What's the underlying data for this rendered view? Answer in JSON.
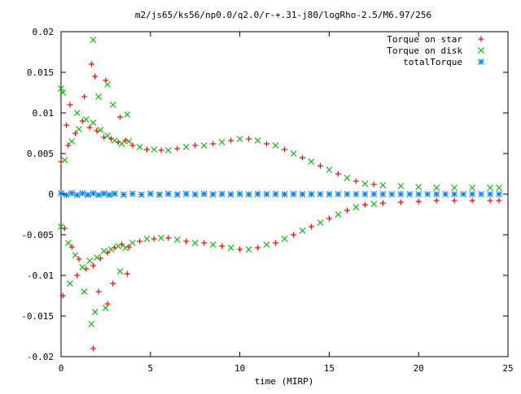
{
  "chart_data": {
    "type": "scatter",
    "title": "m2/js65/ks56/np0.0/q2.0/r-+.31-j80/logRho-2.5/M6.97/256",
    "xlabel": "time (MIRP)",
    "ylabel": "",
    "xlim": [
      0,
      25
    ],
    "ylim": [
      -0.02,
      0.02
    ],
    "x_ticks": [
      "0",
      "5",
      "10",
      "15",
      "20",
      "25"
    ],
    "y_ticks": [
      "-0.02",
      "-0.015",
      "-0.01",
      "-0.005",
      "0",
      "0.005",
      "0.01",
      "0.015",
      "0.02"
    ],
    "grid": false,
    "legend_position": "top-right",
    "series": [
      {
        "name": "Torque on star",
        "marker": "+",
        "color": "#ff0000",
        "x": [
          0.0,
          0.2,
          0.4,
          0.6,
          0.8,
          1.0,
          1.2,
          1.4,
          1.6,
          1.8,
          2.0,
          2.2,
          2.4,
          2.6,
          2.8,
          3.0,
          3.2,
          3.4,
          3.6,
          3.8,
          4.0,
          4.4,
          4.8,
          5.2,
          5.6,
          6.0,
          6.5,
          7.0,
          7.5,
          8.0,
          8.5,
          9.0,
          9.5,
          10.0,
          10.5,
          11.0,
          11.5,
          12.0,
          12.5,
          13.0,
          13.5,
          14.0,
          14.5,
          15.0,
          15.5,
          16.0,
          16.5,
          17.0,
          17.5,
          18.0,
          19.0,
          20.0,
          21.0,
          22.0,
          23.0,
          24.0,
          24.5,
          0.1,
          0.5,
          0.9,
          1.3,
          1.7,
          2.1,
          2.5,
          2.9,
          3.3,
          3.7,
          1.8,
          1.9,
          0.3,
          2.6
        ],
        "y": [
          0.004,
          -0.0042,
          0.006,
          -0.0065,
          0.0075,
          -0.008,
          0.009,
          -0.0092,
          0.0082,
          -0.0088,
          0.0078,
          -0.0079,
          0.007,
          -0.0072,
          0.0068,
          -0.0066,
          0.0064,
          -0.0062,
          0.0066,
          -0.0065,
          0.006,
          -0.0058,
          0.0055,
          -0.0055,
          0.0054,
          -0.0054,
          0.0056,
          -0.0058,
          0.006,
          -0.006,
          0.0062,
          -0.0064,
          0.0066,
          -0.0068,
          0.0068,
          -0.0066,
          0.0062,
          -0.006,
          0.0055,
          -0.005,
          0.0045,
          -0.004,
          0.0035,
          -0.003,
          0.0025,
          -0.002,
          0.0016,
          -0.0013,
          0.0012,
          -0.0011,
          -0.001,
          -0.0009,
          -0.0008,
          -0.0008,
          -0.0008,
          -0.0008,
          -0.0008,
          -0.0125,
          0.011,
          -0.01,
          0.012,
          0.016,
          -0.012,
          0.014,
          -0.011,
          0.0095,
          -0.0098,
          -0.019,
          0.0145,
          0.0085,
          -0.0135
        ]
      },
      {
        "name": "Torque on disk",
        "marker": "x",
        "color": "#00c000",
        "x": [
          0.0,
          0.2,
          0.4,
          0.6,
          0.8,
          1.0,
          1.2,
          1.4,
          1.6,
          1.8,
          2.0,
          2.2,
          2.4,
          2.6,
          2.8,
          3.0,
          3.2,
          3.4,
          3.6,
          3.8,
          4.0,
          4.4,
          4.8,
          5.2,
          5.6,
          6.0,
          6.5,
          7.0,
          7.5,
          8.0,
          8.5,
          9.0,
          9.5,
          10.0,
          10.5,
          11.0,
          11.5,
          12.0,
          12.5,
          13.0,
          13.5,
          14.0,
          14.5,
          15.0,
          15.5,
          16.0,
          16.5,
          17.0,
          17.5,
          18.0,
          19.0,
          20.0,
          21.0,
          22.0,
          23.0,
          24.0,
          24.5,
          0.1,
          0.5,
          0.9,
          1.3,
          1.7,
          2.1,
          2.5,
          2.9,
          3.3,
          3.7,
          1.8,
          1.9,
          0.0,
          2.6
        ],
        "y": [
          -0.004,
          0.0042,
          -0.006,
          0.0065,
          -0.0075,
          0.008,
          -0.009,
          0.0092,
          -0.0082,
          0.0088,
          -0.0078,
          0.0079,
          -0.007,
          0.0072,
          -0.0068,
          0.0066,
          -0.0064,
          0.0062,
          -0.0066,
          0.0065,
          -0.006,
          0.0058,
          -0.0055,
          0.0055,
          -0.0054,
          0.0054,
          -0.0056,
          0.0058,
          -0.006,
          0.006,
          -0.0062,
          0.0064,
          -0.0066,
          0.0068,
          -0.0068,
          0.0066,
          -0.0062,
          0.006,
          -0.0055,
          0.005,
          -0.0045,
          0.004,
          -0.0035,
          0.003,
          -0.0025,
          0.002,
          -0.0016,
          0.0013,
          -0.0012,
          0.0011,
          0.001,
          0.0009,
          0.0008,
          0.0008,
          0.0008,
          0.0008,
          0.0008,
          0.0125,
          -0.011,
          0.01,
          -0.012,
          -0.016,
          0.012,
          -0.014,
          0.011,
          -0.0095,
          0.0098,
          0.019,
          -0.0145,
          0.013,
          0.0135
        ]
      },
      {
        "name": "totalTorque",
        "marker": "*",
        "color": "#0080ff",
        "x": [
          0.0,
          0.3,
          0.6,
          0.9,
          1.2,
          1.5,
          1.8,
          2.1,
          2.4,
          2.7,
          3.0,
          3.5,
          4.0,
          4.5,
          5.0,
          5.5,
          6.0,
          6.5,
          7.0,
          7.5,
          8.0,
          8.5,
          9.0,
          9.5,
          10.0,
          10.5,
          11.0,
          11.5,
          12.0,
          12.5,
          13.0,
          13.5,
          14.0,
          14.5,
          15.0,
          15.5,
          16.0,
          16.5,
          17.0,
          17.5,
          18.0,
          18.5,
          19.0,
          19.5,
          20.0,
          20.5,
          21.0,
          21.5,
          22.0,
          22.5,
          23.0,
          23.5,
          24.0,
          24.5
        ],
        "y": [
          0.0001,
          -0.0001,
          0.00012,
          -0.0001,
          0.0001,
          -8e-05,
          0.0001,
          -0.0001,
          8e-05,
          -8e-05,
          6e-05,
          -6e-05,
          5e-05,
          -5e-05,
          4e-05,
          -4e-05,
          4e-05,
          -3e-05,
          3e-05,
          -3e-05,
          3e-05,
          -2e-05,
          2e-05,
          -2e-05,
          2e-05,
          -2e-05,
          2e-05,
          -1e-05,
          1e-05,
          -1e-05,
          1e-05,
          -1e-05,
          1e-05,
          0.0,
          0.0,
          0.0,
          0.0,
          0.0,
          0.0,
          0.0,
          0.0,
          0.0,
          0.0,
          0.0,
          0.0,
          0.0,
          0.0,
          0.0,
          0.0,
          0.0,
          0.0,
          0.0,
          0.0,
          0.0
        ]
      }
    ]
  }
}
